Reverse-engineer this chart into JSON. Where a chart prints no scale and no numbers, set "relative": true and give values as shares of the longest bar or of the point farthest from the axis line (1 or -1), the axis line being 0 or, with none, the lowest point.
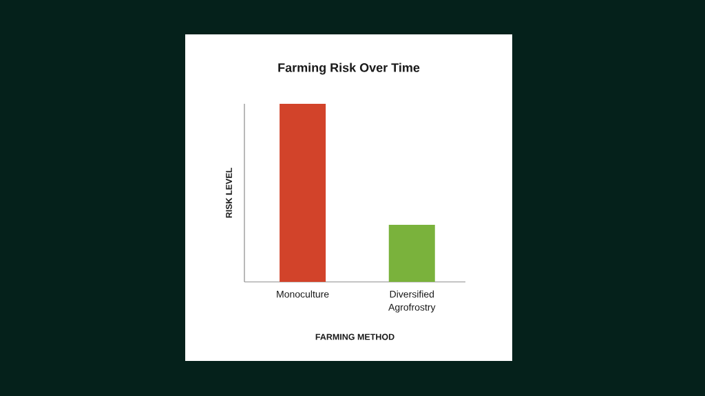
{
  "chart_data": {
    "type": "bar",
    "title": "Farming Risk Over Time",
    "xlabel": "FARMING METHOD",
    "ylabel": "RISK LEVEL",
    "categories": [
      "Monoculture",
      "Diversified Agrofrostry"
    ],
    "values": [
      1,
      0.32
    ],
    "colors": [
      "#d2432a",
      "#7ab23c"
    ],
    "relative": true
  }
}
